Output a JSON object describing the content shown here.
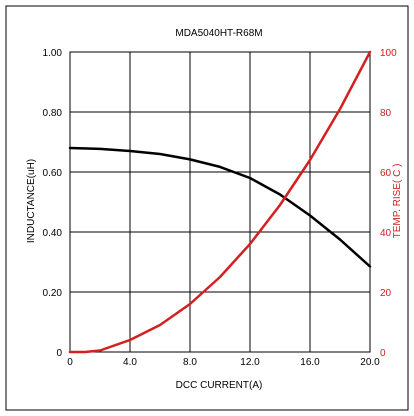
{
  "chart_data": {
    "type": "line",
    "title": "MDA5040HT-R68M",
    "xlabel": "DCC CURRENT(A)",
    "ylabel_left": "INDUCTANCE(uH)",
    "ylabel_right": "TEMP. RISE( C )",
    "xlim": [
      0,
      20
    ],
    "ylim_left": [
      0,
      1.0
    ],
    "ylim_right": [
      0,
      100
    ],
    "x_ticks": [
      0,
      4,
      8,
      12,
      16,
      20
    ],
    "x_tick_labels": [
      "0",
      "4.0",
      "8.0",
      "12.0",
      "16.0",
      "20.0"
    ],
    "y_left_ticks": [
      0,
      0.2,
      0.4,
      0.6,
      0.8,
      1.0
    ],
    "y_left_tick_labels": [
      "0",
      "0.20",
      "0.40",
      "0.60",
      "0.80",
      "1.00"
    ],
    "y_right_ticks": [
      0,
      20,
      40,
      60,
      80,
      100
    ],
    "y_right_tick_labels": [
      "0",
      "20",
      "40",
      "60",
      "80",
      "100"
    ],
    "grid": true,
    "series": [
      {
        "axis": "left",
        "color": "#000000",
        "x": [
          0,
          2,
          4,
          6,
          8,
          10,
          12,
          14,
          16,
          18,
          20
        ],
        "y": [
          0.68,
          0.677,
          0.67,
          0.66,
          0.642,
          0.617,
          0.58,
          0.525,
          0.455,
          0.375,
          0.285
        ]
      },
      {
        "axis": "right",
        "color": "#d42020",
        "x": [
          0,
          1,
          2,
          4,
          6,
          8,
          10,
          12,
          14,
          16,
          18,
          20
        ],
        "y": [
          0,
          0,
          0.5,
          4,
          9,
          16,
          25,
          36,
          49,
          64,
          81,
          100
        ]
      }
    ],
    "colors": {
      "left_axis": "#000000",
      "right_axis": "#d42020",
      "grid": "#000000"
    }
  }
}
